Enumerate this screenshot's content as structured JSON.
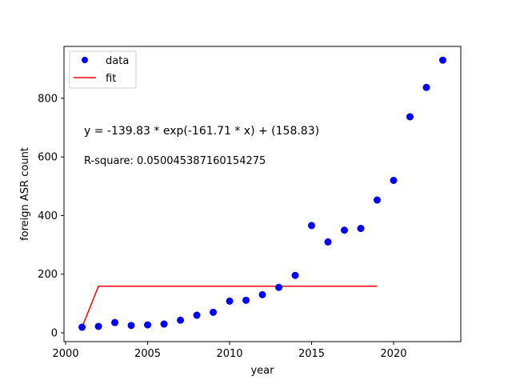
{
  "chart_data": {
    "type": "scatter",
    "xlabel": "year",
    "ylabel": "foreign ASR count",
    "xlim": [
      1999.9,
      2024.1
    ],
    "ylim": [
      -30,
      977
    ],
    "xticks": [
      2000,
      2005,
      2010,
      2015,
      2020
    ],
    "yticks": [
      0,
      200,
      400,
      600,
      800
    ],
    "grid": false,
    "legend_position": "top-left",
    "series": [
      {
        "name": "data",
        "kind": "markers",
        "color": "#0000ff",
        "x": [
          2001,
          2002,
          2003,
          2004,
          2005,
          2006,
          2007,
          2008,
          2009,
          2010,
          2011,
          2012,
          2013,
          2014,
          2015,
          2016,
          2017,
          2018,
          2019,
          2020,
          2021,
          2022,
          2023
        ],
        "y": [
          19,
          22,
          35,
          25,
          27,
          30,
          43,
          60,
          70,
          108,
          111,
          130,
          155,
          196,
          366,
          310,
          350,
          356,
          453,
          520,
          737,
          837,
          930
        ]
      },
      {
        "name": "fit",
        "kind": "line",
        "color": "#ff0000",
        "x": [
          2001,
          2002,
          2003,
          2004,
          2005,
          2006,
          2007,
          2008,
          2009,
          2010,
          2011,
          2012,
          2013,
          2014,
          2015,
          2016,
          2017,
          2018,
          2019
        ],
        "y": [
          19,
          158.83,
          158.83,
          158.83,
          158.83,
          158.83,
          158.83,
          158.83,
          158.83,
          158.83,
          158.83,
          158.83,
          158.83,
          158.83,
          158.83,
          158.83,
          158.83,
          158.83,
          158.83
        ]
      }
    ],
    "annotations": {
      "equation": "y = -139.83 * exp(-161.71 * x) + (158.83)",
      "r_square": "R-square: 0.050045387160154275"
    }
  }
}
